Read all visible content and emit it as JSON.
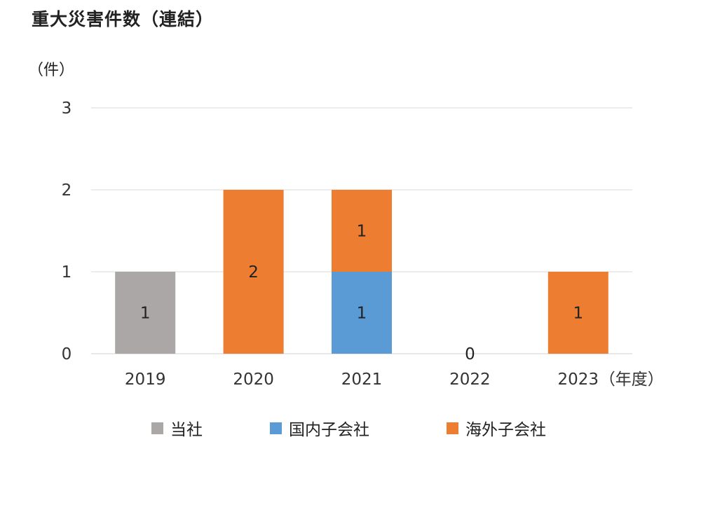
{
  "title": "重大災害件数（連結）",
  "y_unit": "（件）",
  "x_unit": "（年度）",
  "colors": {
    "当社": "#aaa7a6",
    "国内子会社": "#5b9bd5",
    "海外子会社": "#ed7d31",
    "grid": "#d9d9d9"
  },
  "chart_data": {
    "type": "bar",
    "stacked": true,
    "title": "重大災害件数（連結）",
    "ylabel": "（件）",
    "xlabel": "（年度）",
    "categories": [
      "2019",
      "2020",
      "2021",
      "2022",
      "2023"
    ],
    "ylim": [
      0,
      3
    ],
    "yticks": [
      0,
      1,
      2,
      3
    ],
    "grid": true,
    "legend_position": "bottom",
    "series": [
      {
        "name": "当社",
        "values": [
          1,
          0,
          0,
          0,
          0
        ]
      },
      {
        "name": "国内子会社",
        "values": [
          0,
          0,
          1,
          0,
          0
        ]
      },
      {
        "name": "海外子会社",
        "values": [
          0,
          2,
          1,
          0,
          1
        ]
      }
    ],
    "zero_label_2022": "0"
  }
}
